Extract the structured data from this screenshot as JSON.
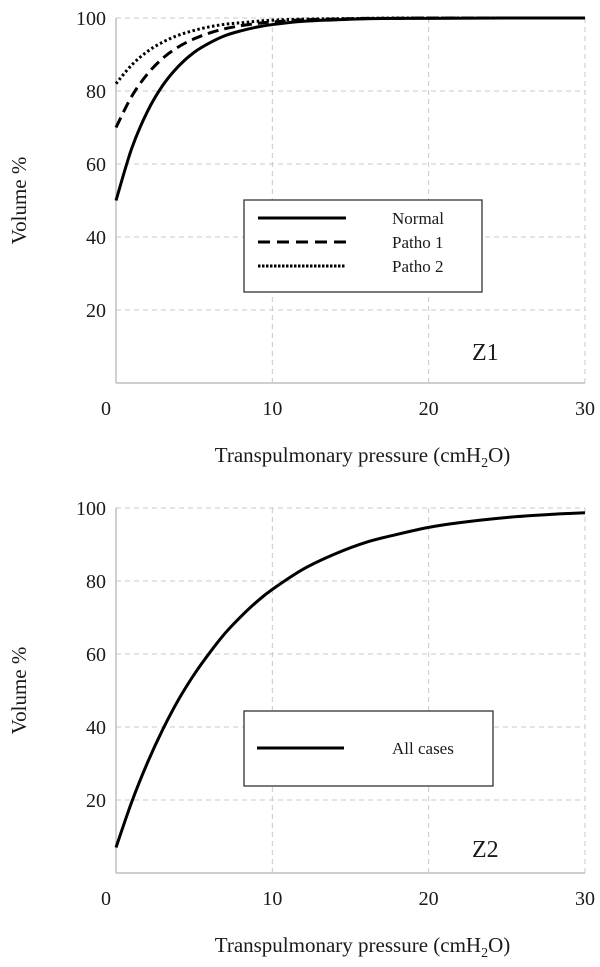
{
  "chart_data": [
    {
      "type": "line",
      "panel_label": "Z1",
      "xlabel": "Transpulmonary pressure (cmH",
      "xlabel_sub": "2",
      "xlabel_end": "O)",
      "ylabel": "Volume %",
      "xlim": [
        0,
        30
      ],
      "ylim": [
        0,
        100
      ],
      "xticks": [
        "0",
        "10",
        "20",
        "30"
      ],
      "yticks": [
        "20",
        "40",
        "60",
        "80",
        "100"
      ],
      "grid": true,
      "legend_position": "center-right",
      "x": [
        0,
        1,
        2,
        3,
        4,
        5,
        6,
        7,
        8,
        9,
        10,
        12,
        14,
        16,
        18,
        20,
        25,
        30
      ],
      "series": [
        {
          "name": "Normal",
          "style": "solid",
          "values": [
            50,
            64.2,
            74.3,
            81.6,
            86.8,
            90.6,
            93.2,
            95.2,
            96.5,
            97.5,
            98.2,
            99.1,
            99.5,
            99.8,
            99.9,
            99.9,
            100,
            100
          ]
        },
        {
          "name": "Patho 1",
          "style": "dashed",
          "values": [
            70,
            78.5,
            84.6,
            89.0,
            92.1,
            94.3,
            95.9,
            97.1,
            97.9,
            98.5,
            98.9,
            99.5,
            99.7,
            99.9,
            99.9,
            100,
            100,
            100
          ]
        },
        {
          "name": "Patho 2",
          "style": "dotted",
          "values": [
            82,
            87.1,
            90.8,
            93.4,
            95.3,
            96.6,
            97.6,
            98.3,
            98.7,
            99.1,
            99.4,
            99.7,
            99.8,
            99.9,
            100,
            100,
            100,
            100
          ]
        }
      ]
    },
    {
      "type": "line",
      "panel_label": "Z2",
      "xlabel": "Transpulmonary pressure (cmH",
      "xlabel_sub": "2",
      "xlabel_end": "O)",
      "ylabel": "Volume %",
      "xlim": [
        0,
        30
      ],
      "ylim": [
        0,
        100
      ],
      "xticks": [
        "0",
        "10",
        "20",
        "30"
      ],
      "yticks": [
        "20",
        "40",
        "60",
        "80",
        "100"
      ],
      "grid": true,
      "legend_position": "center-right",
      "x": [
        0,
        1,
        2,
        3,
        4,
        5,
        6,
        7,
        8,
        9,
        10,
        12,
        14,
        16,
        18,
        20,
        22,
        25,
        28,
        30
      ],
      "series": [
        {
          "name": "All cases",
          "style": "solid",
          "values": [
            7,
            19.4,
            30.1,
            39.4,
            47.5,
            54.4,
            60.4,
            65.8,
            70.3,
            74.3,
            77.7,
            83.3,
            87.4,
            90.6,
            92.8,
            94.7,
            96.0,
            97.4,
            98.3,
            98.7
          ]
        }
      ]
    }
  ]
}
